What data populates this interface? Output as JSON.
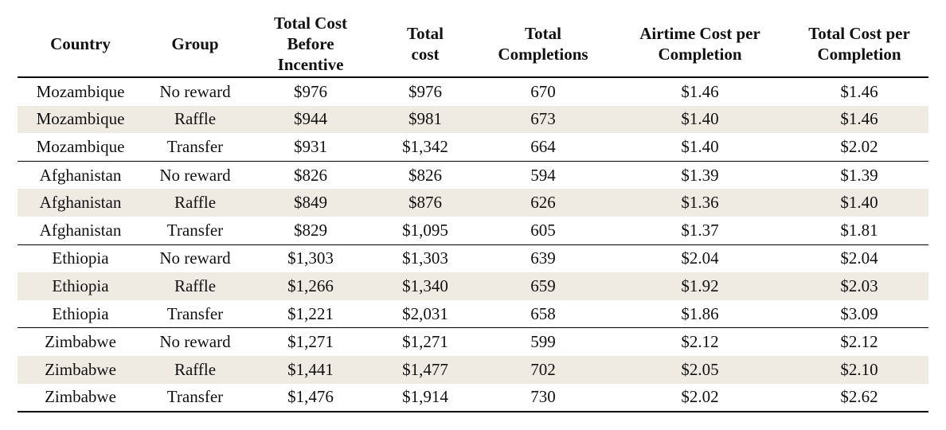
{
  "table": {
    "headers": [
      [
        "Country"
      ],
      [
        "Group"
      ],
      [
        "Total Cost",
        "Before",
        "Incentive"
      ],
      [
        "Total",
        "cost"
      ],
      [
        "Total",
        "Completions"
      ],
      [
        "Airtime Cost per",
        "Completion"
      ],
      [
        "Total Cost per",
        "Completion"
      ]
    ],
    "rows": [
      [
        "Mozambique",
        "No reward",
        "$976",
        "$976",
        "670",
        "$1.46",
        "$1.46"
      ],
      [
        "Mozambique",
        "Raffle",
        "$944",
        "$981",
        "673",
        "$1.40",
        "$1.46"
      ],
      [
        "Mozambique",
        "Transfer",
        "$931",
        "$1,342",
        "664",
        "$1.40",
        "$2.02"
      ],
      [
        "Afghanistan",
        "No reward",
        "$826",
        "$826",
        "594",
        "$1.39",
        "$1.39"
      ],
      [
        "Afghanistan",
        "Raffle",
        "$849",
        "$876",
        "626",
        "$1.36",
        "$1.40"
      ],
      [
        "Afghanistan",
        "Transfer",
        "$829",
        "$1,095",
        "605",
        "$1.37",
        "$1.81"
      ],
      [
        "Ethiopia",
        "No reward",
        "$1,303",
        "$1,303",
        "639",
        "$2.04",
        "$2.04"
      ],
      [
        "Ethiopia",
        "Raffle",
        "$1,266",
        "$1,340",
        "659",
        "$1.92",
        "$2.03"
      ],
      [
        "Ethiopia",
        "Transfer",
        "$1,221",
        "$2,031",
        "658",
        "$1.86",
        "$3.09"
      ],
      [
        "Zimbabwe",
        "No reward",
        "$1,271",
        "$1,271",
        "599",
        "$2.12",
        "$2.12"
      ],
      [
        "Zimbabwe",
        "Raffle",
        "$1,441",
        "$1,477",
        "702",
        "$2.05",
        "$2.10"
      ],
      [
        "Zimbabwe",
        "Transfer",
        "$1,476",
        "$1,914",
        "730",
        "$2.02",
        "$2.62"
      ]
    ],
    "shaded_row_color": "#efebe2"
  }
}
